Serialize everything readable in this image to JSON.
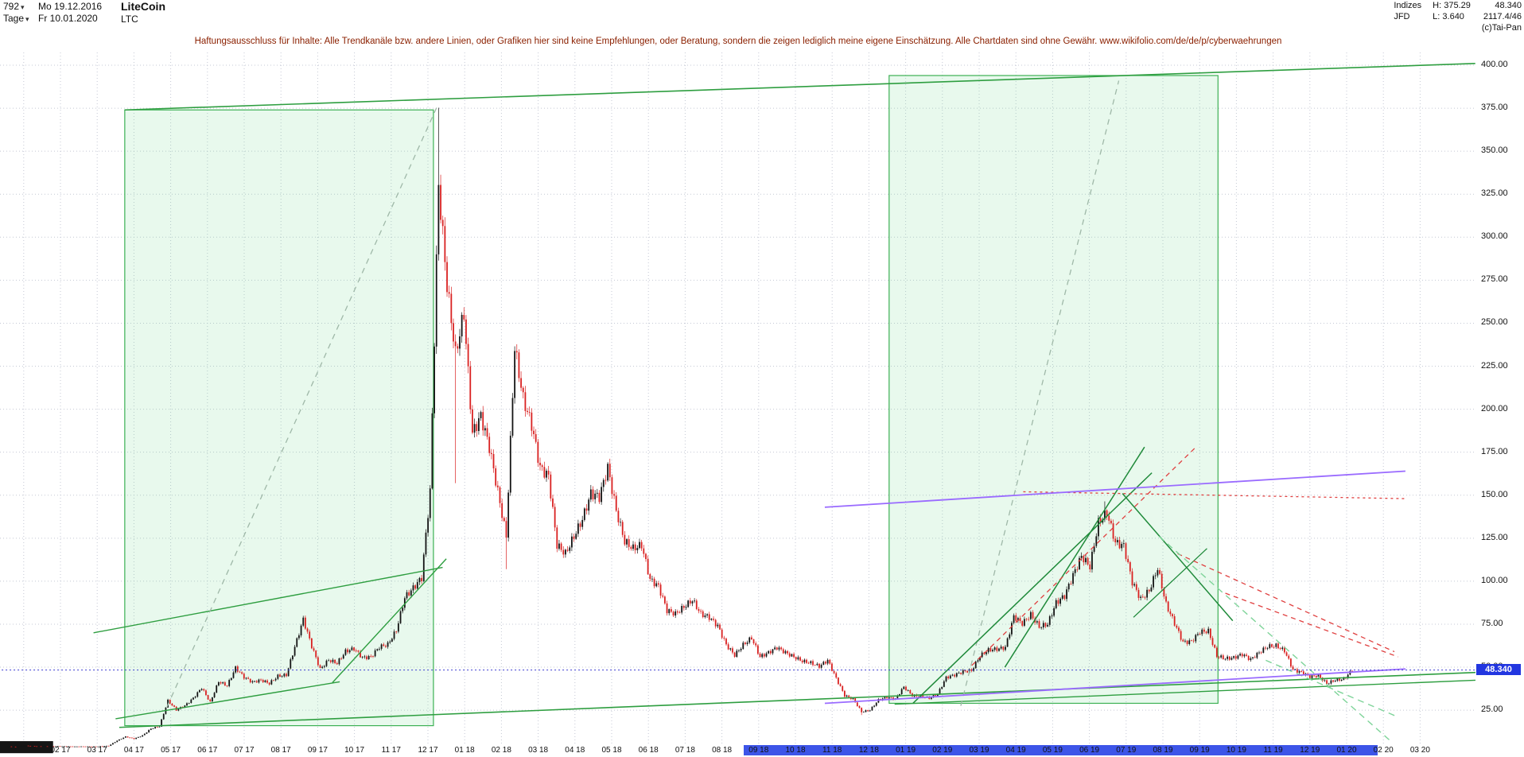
{
  "header": {
    "bar_count": "792",
    "start_date": "Mo 19.12.2016",
    "title": "LiteCoin",
    "timeframe": "Tage",
    "end_date": "Fr 10.01.2020",
    "symbol": "LTC",
    "right": {
      "group": "Indizes",
      "high": "H: 375.29",
      "last": "48.340",
      "provider": "JFD",
      "low": "L: 3.640",
      "turnover": "2117.4/46",
      "copyright": "(c)Tai-Pan"
    },
    "disclaimer": "Haftungsausschluss für Inhalte: Alle Trendkanäle bzw. andere Linien, oder Grafiken hier sind keine Empfehlungen, oder Beratung, sondern die zeigen lediglich meine eigene Einschätzung. Alle Chartdaten sind ohne Gewähr.   www.wikifolio.com/de/de/p/cyberwaehrungen"
  },
  "chart_data": {
    "type": "candlestick",
    "instrument": "LiteCoin (LTC)",
    "period": "Tage, 19.12.2016 - 10.01.2020",
    "x_unit": "month index, 0 = Feb 2017",
    "y_axis": {
      "min": 25,
      "max": 400,
      "step": 25,
      "labels": [
        "400.00",
        "375.00",
        "350.00",
        "325.00",
        "300.00",
        "275.00",
        "250.00",
        "225.00",
        "200.00",
        "175.00",
        "150.00",
        "125.00",
        "100.00",
        "75.00",
        "50.00",
        "25.00"
      ]
    },
    "x_labels": [
      "02 17",
      "03 17",
      "04 17",
      "05 17",
      "06 17",
      "07 17",
      "08 17",
      "09 17",
      "10 17",
      "11 17",
      "12 17",
      "01 18",
      "02 18",
      "03 18",
      "04 18",
      "05 18",
      "06 18",
      "07 18",
      "08 18",
      "09 18",
      "10 18",
      "11 18",
      "12 18",
      "01 19",
      "02 19",
      "03 19",
      "04 19",
      "05 19",
      "06 19",
      "07 19",
      "08 19",
      "09 19",
      "10 19",
      "11 19",
      "12 19",
      "01 20",
      "02 20",
      "03 20"
    ],
    "weekly_closes": [
      3.9,
      3.7,
      4.4,
      4.1,
      3.9,
      4.0,
      4.05,
      3.95,
      3.85,
      3.9,
      3.8,
      4.0,
      4.3,
      7.3,
      9.6,
      8.4,
      10.3,
      14.3,
      15.6,
      30.5,
      25.2,
      27.6,
      32.0,
      38.0,
      29.6,
      41.6,
      39.2,
      49.6,
      44.2,
      41.3,
      42.5,
      40.6,
      44.8,
      45.4,
      61.8,
      77.8,
      62.2,
      48.8,
      54.2,
      52.3,
      59.2,
      60.8,
      55.5,
      56.0,
      61.8,
      63.2,
      71.4,
      90.5,
      96.0,
      102.0,
      152.0,
      330.0,
      272.0,
      232.0,
      256.0,
      186.0,
      196.0,
      178.0,
      152.0,
      126.0,
      236.0,
      206.0,
      191.0,
      166.0,
      161.0,
      121.0,
      116.0,
      126.0,
      136.0,
      151.0,
      149.0,
      166.0,
      141.0,
      123.0,
      119.0,
      121.0,
      101.0,
      97.0,
      83.0,
      81.0,
      85.0,
      89.0,
      81.0,
      79.0,
      74.0,
      63.0,
      57.0,
      63.0,
      67.0,
      56.0,
      58.5,
      61.5,
      58.5,
      56.0,
      53.5,
      52.5,
      50.5,
      54.0,
      43.5,
      33.5,
      31.5,
      24.0,
      25.0,
      31.0,
      32.5,
      31.5,
      38.5,
      33.5,
      33.0,
      32.0,
      34.5,
      44.0,
      45.5,
      47.5,
      48.0,
      56.5,
      60.0,
      60.5,
      61.5,
      79.5,
      75.5,
      80.5,
      73.5,
      75.0,
      87.5,
      91.5,
      103.5,
      114.5,
      108.5,
      134.0,
      140.0,
      122.5,
      120.5,
      99.5,
      89.5,
      94.5,
      107.5,
      86.5,
      75.5,
      64.5,
      65.0,
      70.5,
      71.0,
      56.5,
      55.0,
      55.5,
      57.5,
      54.5,
      58.5,
      62.0,
      62.5,
      59.5,
      48.5,
      47.0,
      44.5,
      45.0,
      40.5,
      42.5,
      43.0,
      48.34
    ],
    "extremes": [
      {
        "week": 1,
        "kind": "low",
        "price": 3.64
      },
      {
        "week": 51,
        "kind": "high",
        "price": 375.29
      },
      {
        "week": 53,
        "kind": "low",
        "price": 157
      },
      {
        "week": 59,
        "kind": "low",
        "price": 107
      },
      {
        "week": 101,
        "kind": "low",
        "price": 22.17
      },
      {
        "week": 130,
        "kind": "high",
        "price": 146.4
      }
    ],
    "last_price": 48.34,
    "last_price_label": "48.340",
    "colors": {
      "up": "#141414",
      "down": "#d92121",
      "box_fill": "rgba(110,215,140,0.16)",
      "box_stroke": "#3cb054",
      "accent_blue": "#2236e0",
      "range_band": "#3d55e8"
    },
    "boxes": [
      {
        "name": "box-2017-rally",
        "m0": 1.75,
        "m1": 10.15,
        "v0": 16,
        "v1": 374
      },
      {
        "name": "box-2019-rally",
        "m0": 22.55,
        "m1": 31.5,
        "v0": 29,
        "v1": 394
      }
    ],
    "marks": [
      {
        "name": "baseline-bar",
        "m0": -1.65,
        "m1": -0.2,
        "v0": 0,
        "v1": 7,
        "color": "#151515"
      }
    ],
    "lines": [
      {
        "name": "upper-channel",
        "pts": [
          [
            1.75,
            374
          ],
          [
            38.5,
            401
          ]
        ],
        "color": "#2e9e40",
        "w": 1.6
      },
      {
        "name": "long-support",
        "pts": [
          [
            1.6,
            15
          ],
          [
            38.6,
            47
          ]
        ],
        "color": "#2e9e40",
        "w": 1.6
      },
      {
        "name": "support-2019",
        "pts": [
          [
            22.7,
            28.5
          ],
          [
            38.6,
            42.5
          ]
        ],
        "color": "#2e9e40",
        "w": 1.4
      },
      {
        "name": "channel-2017-upper",
        "pts": [
          [
            0.9,
            70
          ],
          [
            10.4,
            108
          ]
        ],
        "color": "#2e9e40",
        "w": 1.4
      },
      {
        "name": "trend-2017-steep",
        "pts": [
          [
            7.4,
            41
          ],
          [
            10.5,
            113
          ]
        ],
        "color": "#2e9e40",
        "w": 1.4
      },
      {
        "name": "trend-2017-early",
        "pts": [
          [
            1.5,
            20
          ],
          [
            7.6,
            41.5
          ]
        ],
        "color": "#2e9e40",
        "w": 1.4
      },
      {
        "name": "diagonal-2017",
        "pts": [
          [
            2.9,
            27
          ],
          [
            10.25,
            376
          ]
        ],
        "color": "#9fb8a8",
        "w": 1.3,
        "dash": "7 6"
      },
      {
        "name": "diagonal-2019",
        "pts": [
          [
            24.5,
            27.5
          ],
          [
            28.8,
            391
          ]
        ],
        "color": "#9fb8a8",
        "w": 1.3,
        "dash": "7 6"
      },
      {
        "name": "uptrend-2019-long",
        "pts": [
          [
            23.2,
            29
          ],
          [
            29.7,
            163
          ]
        ],
        "color": "#1f8a3a",
        "w": 1.5
      },
      {
        "name": "uptrend-2019-steep",
        "pts": [
          [
            25.7,
            50
          ],
          [
            29.5,
            178
          ]
        ],
        "color": "#1f8a3a",
        "w": 1.5
      },
      {
        "name": "downtrend-after-peak",
        "pts": [
          [
            28.9,
            151
          ],
          [
            31.9,
            77
          ]
        ],
        "color": "#1f8a3a",
        "w": 1.5
      },
      {
        "name": "wedge-rise-sep",
        "pts": [
          [
            29.2,
            79
          ],
          [
            31.2,
            119
          ]
        ],
        "color": "#1f8a3a",
        "w": 1.3
      },
      {
        "name": "resistance-red",
        "pts": [
          [
            26.2,
            152
          ],
          [
            36.6,
            148
          ]
        ],
        "color": "#e04040",
        "w": 1.3,
        "dash": "3 4"
      },
      {
        "name": "red-rising",
        "pts": [
          [
            24.8,
            51
          ],
          [
            30.9,
            178
          ]
        ],
        "color": "#e04040",
        "w": 1.3,
        "dash": "6 5"
      },
      {
        "name": "red-falling-1",
        "pts": [
          [
            30.4,
            116
          ],
          [
            36.3,
            59
          ]
        ],
        "color": "#e04040",
        "w": 1.3,
        "dash": "6 5"
      },
      {
        "name": "red-falling-2",
        "pts": [
          [
            31.7,
            93
          ],
          [
            36.4,
            56
          ]
        ],
        "color": "#e04040",
        "w": 1.3,
        "dash": "6 5"
      },
      {
        "name": "ltgreen-falling-long",
        "pts": [
          [
            29.9,
            126
          ],
          [
            36.2,
            7
          ]
        ],
        "color": "#7fd49a",
        "w": 1.4,
        "dash": "8 6"
      },
      {
        "name": "ltgreen-falling-short",
        "pts": [
          [
            32.8,
            54
          ],
          [
            36.4,
            21
          ]
        ],
        "color": "#7fd49a",
        "w": 1.4,
        "dash": "8 6"
      },
      {
        "name": "purple-upper",
        "pts": [
          [
            20.8,
            143
          ],
          [
            36.6,
            164
          ]
        ],
        "color": "#9a6bff",
        "w": 1.8
      },
      {
        "name": "purple-lower",
        "pts": [
          [
            20.8,
            29
          ],
          [
            36.6,
            49
          ]
        ],
        "color": "#9a6bff",
        "w": 1.8
      },
      {
        "name": "current-price-line",
        "pts": [
          [
            -1.6,
            48.34
          ],
          [
            38.8,
            48.34
          ]
        ],
        "color": "#3a3ad0",
        "w": 1,
        "dash": "2 3"
      }
    ],
    "range_bar": {
      "from_month_index": 18.6,
      "to_month_index": 35.85,
      "from_label": "09 18",
      "to_label": "01 20"
    }
  }
}
